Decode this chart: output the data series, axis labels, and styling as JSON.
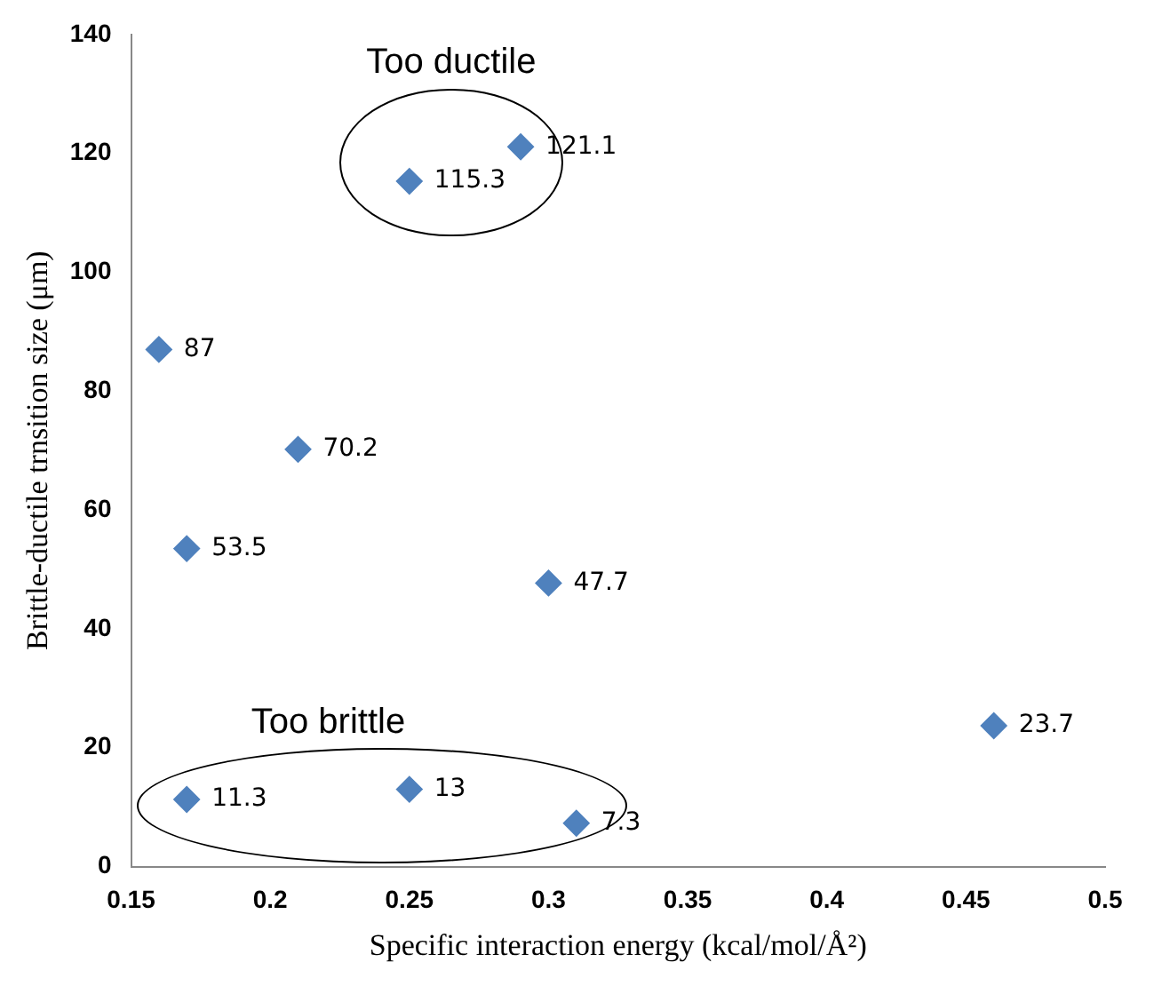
{
  "chart_data": {
    "type": "scatter",
    "xlabel": "Specific interaction energy (kcal/mol/Å²)",
    "ylabel": "Brittle-ductile trnsition size (μm)",
    "x": [
      0.16,
      0.17,
      0.21,
      0.25,
      0.29,
      0.3,
      0.46,
      0.17,
      0.25,
      0.31
    ],
    "values": [
      87,
      53.5,
      70.2,
      115.3,
      121.1,
      47.7,
      23.7,
      11.3,
      13,
      7.3
    ],
    "color": "#4f81bd",
    "marker": "diamond",
    "data_labels": true,
    "grid": false,
    "legend": false,
    "xlim": [
      0.15,
      0.5
    ],
    "xticks": [
      0.15,
      0.2,
      0.25,
      0.3,
      0.35,
      0.4,
      0.45,
      0.5
    ],
    "ylim": [
      0,
      140
    ],
    "yticks": [
      0,
      20,
      40,
      60,
      80,
      100,
      120,
      140
    ],
    "annotations": [
      "Too ductile",
      "Too brittle"
    ]
  }
}
